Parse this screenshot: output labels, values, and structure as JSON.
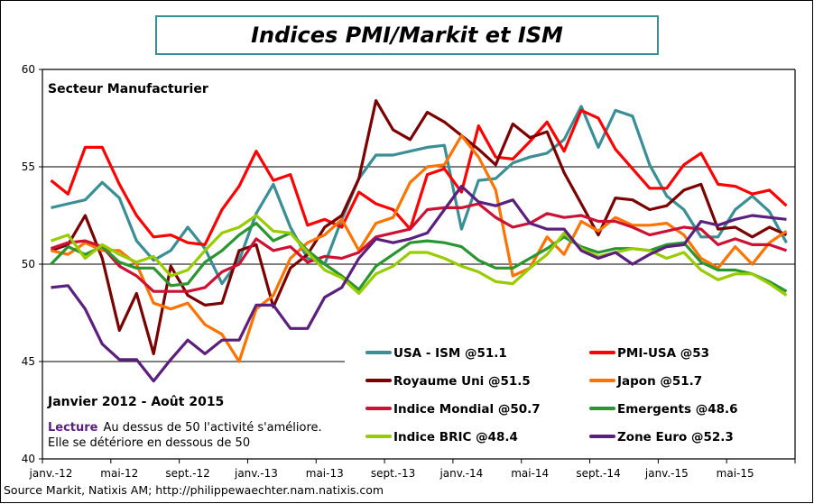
{
  "chart_data": {
    "type": "line",
    "title": "Indices PMI/Markit et ISM",
    "subtitle": "Secteur Manufacturier",
    "period_label": "Janvier 2012 - Août 2015",
    "note_lead": "Lecture",
    "note_line1": "Au dessus de 50 l'activité s'améliore.",
    "note_line2": "Elle se détériore en dessous de 50",
    "source": "Source Markit, Natixis AM; http://philippewaechter.nam.natixis.com",
    "ylim": [
      40,
      60
    ],
    "yticks": [
      "40",
      "45",
      "50",
      "55",
      "60"
    ],
    "grid": "horizontal",
    "legend_placement": "bottom-right",
    "x_start": "2012-01",
    "x_end": "2015-08",
    "xtick_labels": [
      "janv.-12",
      "mai-12",
      "sept.-12",
      "janv.-13",
      "mai-13",
      "sept.-13",
      "janv.-14",
      "mai-14",
      "sept.-14",
      "janv.-15",
      "mai-15"
    ],
    "series": [
      {
        "name": "USA - ISM @51.1",
        "color": "#3A8F96",
        "values": [
          52.9,
          53.1,
          53.3,
          54.2,
          53.4,
          51.2,
          50.2,
          50.7,
          51.9,
          50.8,
          49.0,
          50.2,
          52.6,
          54.1,
          51.9,
          50.3,
          50.0,
          52.3,
          54.4,
          55.6,
          55.6,
          55.8,
          56.0,
          56.1,
          51.8,
          54.3,
          54.4,
          55.2,
          55.5,
          55.7,
          56.4,
          58.1,
          56.0,
          57.9,
          57.6,
          55.1,
          53.5,
          52.8,
          51.4,
          51.4,
          52.8,
          53.5,
          52.7,
          51.1
        ]
      },
      {
        "name": "PMI-USA @53",
        "color": "#FF0000",
        "values": [
          54.3,
          53.6,
          56.0,
          56.0,
          54.1,
          52.5,
          51.4,
          51.5,
          51.1,
          51.0,
          52.8,
          54.0,
          55.8,
          54.3,
          54.6,
          52.0,
          52.3,
          51.9,
          53.7,
          53.1,
          52.8,
          51.8,
          54.6,
          54.9,
          53.7,
          57.1,
          55.5,
          55.4,
          56.3,
          57.3,
          55.8,
          57.9,
          57.5,
          55.9,
          54.9,
          53.9,
          53.9,
          55.1,
          55.7,
          54.1,
          54.0,
          53.6,
          53.8,
          53.0
        ]
      },
      {
        "name": "Royaume Uni @51.5",
        "color": "#7B0000",
        "values": [
          50.7,
          51.0,
          52.5,
          50.3,
          46.6,
          48.5,
          45.4,
          49.9,
          48.4,
          47.9,
          48.0,
          50.7,
          51.0,
          47.8,
          49.8,
          50.5,
          51.9,
          52.5,
          54.4,
          58.4,
          56.9,
          56.4,
          57.8,
          57.3,
          56.6,
          55.9,
          55.1,
          57.2,
          56.5,
          56.8,
          54.7,
          53.1,
          51.5,
          53.4,
          53.3,
          52.8,
          53.0,
          53.8,
          54.1,
          51.8,
          51.9,
          51.4,
          51.9,
          51.5
        ]
      },
      {
        "name": "Japon @51.7",
        "color": "#FF7300",
        "values": [
          50.7,
          50.5,
          51.1,
          50.7,
          50.7,
          50.0,
          48.0,
          47.7,
          48.0,
          46.9,
          46.4,
          45.0,
          47.7,
          48.4,
          50.3,
          51.1,
          51.5,
          52.3,
          50.7,
          52.1,
          52.4,
          54.2,
          55.0,
          55.1,
          56.6,
          55.5,
          53.8,
          49.4,
          49.8,
          51.4,
          50.5,
          52.2,
          51.7,
          52.4,
          52.0,
          52.0,
          52.1,
          51.5,
          50.3,
          49.8,
          50.9,
          50.0,
          51.1,
          51.7
        ]
      },
      {
        "name": "Indice Mondial @50.7",
        "color": "#CC1133",
        "values": [
          50.8,
          51.1,
          51.2,
          50.9,
          49.9,
          49.4,
          48.6,
          48.6,
          48.6,
          48.8,
          49.6,
          50.0,
          51.3,
          50.7,
          50.9,
          50.1,
          50.4,
          50.3,
          50.6,
          51.4,
          51.6,
          51.8,
          52.8,
          52.9,
          52.9,
          53.1,
          52.4,
          51.9,
          52.1,
          52.6,
          52.4,
          52.5,
          52.2,
          52.2,
          51.9,
          51.5,
          51.7,
          51.9,
          51.8,
          51.0,
          51.3,
          51.0,
          51.0,
          50.7
        ]
      },
      {
        "name": "Emergents @48.6",
        "color": "#2A9630",
        "values": [
          50.0,
          50.9,
          50.5,
          50.9,
          50.1,
          49.8,
          49.8,
          48.9,
          49.0,
          50.1,
          50.7,
          51.5,
          52.1,
          51.2,
          51.6,
          50.7,
          50.0,
          49.4,
          48.7,
          49.9,
          50.5,
          51.1,
          51.2,
          51.1,
          50.9,
          50.2,
          49.8,
          49.8,
          50.3,
          50.8,
          51.4,
          50.9,
          50.6,
          50.8,
          50.8,
          50.7,
          51.0,
          51.1,
          50.1,
          49.7,
          49.7,
          49.5,
          49.1,
          48.6
        ]
      },
      {
        "name": "Indice BRIC @48.4",
        "color": "#99CC00",
        "values": [
          51.2,
          51.5,
          50.3,
          51.0,
          50.5,
          50.1,
          50.4,
          49.4,
          49.7,
          50.7,
          51.6,
          51.9,
          52.5,
          51.7,
          51.6,
          50.6,
          49.7,
          49.3,
          48.5,
          49.5,
          49.9,
          50.6,
          50.6,
          50.3,
          49.9,
          49.6,
          49.1,
          49.0,
          49.8,
          50.5,
          51.6,
          50.8,
          50.4,
          50.6,
          50.8,
          50.7,
          50.3,
          50.6,
          49.7,
          49.2,
          49.5,
          49.5,
          49.0,
          48.4
        ]
      },
      {
        "name": "Zone Euro @52.3",
        "color": "#5B1F7D",
        "values": [
          48.8,
          48.9,
          47.7,
          45.9,
          45.1,
          45.1,
          44.0,
          45.1,
          46.1,
          45.4,
          46.1,
          46.1,
          47.9,
          47.9,
          46.7,
          46.7,
          48.3,
          48.8,
          50.3,
          51.3,
          51.1,
          51.3,
          51.6,
          52.8,
          54.0,
          53.2,
          53.0,
          53.3,
          52.1,
          51.8,
          51.8,
          50.7,
          50.3,
          50.6,
          50.0,
          50.5,
          50.9,
          51.0,
          52.2,
          52.0,
          52.3,
          52.5,
          52.4,
          52.3
        ]
      }
    ]
  }
}
